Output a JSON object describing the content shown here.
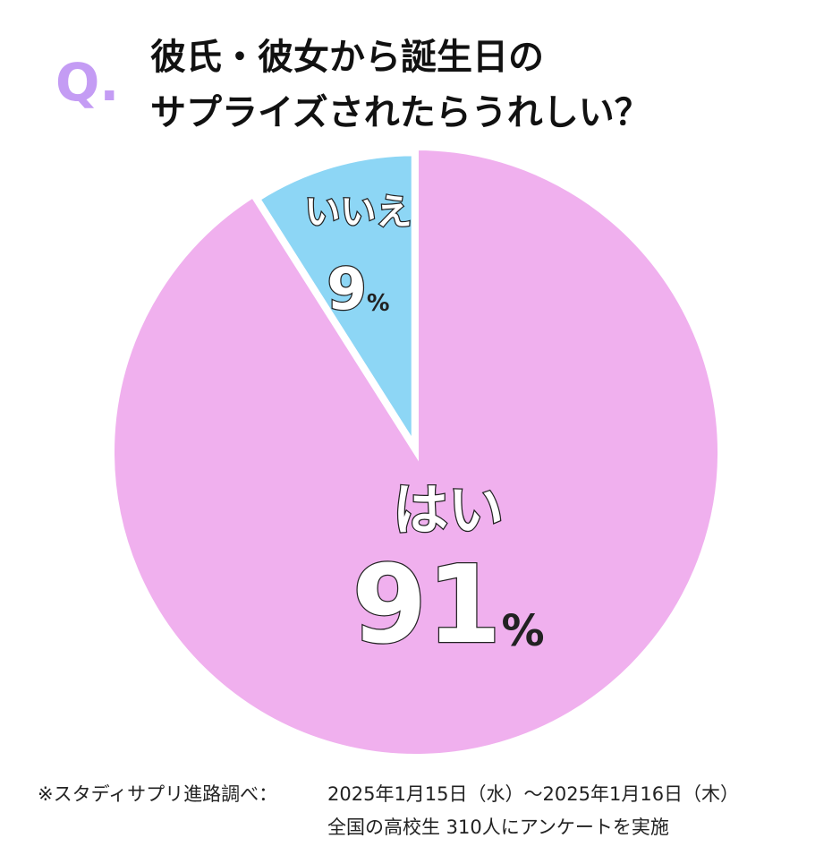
{
  "chart_data": {
    "type": "pie",
    "prefix": "Q.",
    "title": [
      "彼氏・彼女から誕生日の",
      "サプライズされたらうれしい？"
    ],
    "categories": [
      "はい",
      "いいえ"
    ],
    "values": [
      91,
      9
    ],
    "value_labels": [
      "91%",
      "9%"
    ],
    "colors": [
      "#f0b0ee",
      "#8dd6f5"
    ],
    "source": [
      "※スタディサプリ進路調べ：",
      "2025年1月15日（水）～2025年1月16日（木）",
      "全国の高校生 310人にアンケートを実施"
    ]
  }
}
